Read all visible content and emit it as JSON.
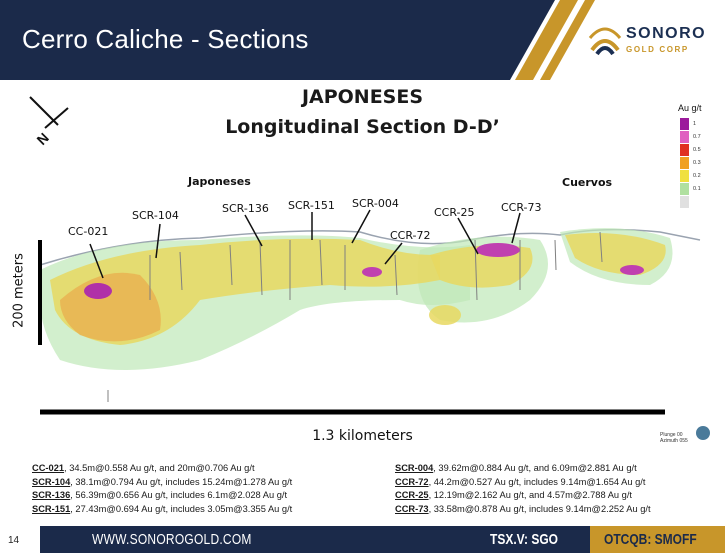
{
  "slide": {
    "title": "Cerro Caliche - Sections",
    "page_number": "14"
  },
  "logo": {
    "line1": "SONORO",
    "line2": "GOLD CORP"
  },
  "section": {
    "title_line1": "JAPONESES",
    "title_line2": "Longitudinal Section D-D’"
  },
  "map": {
    "north_label": "N",
    "zones": [
      "Japoneses",
      "Cuervos"
    ],
    "drill_holes": [
      "CC-021",
      "SCR-104",
      "SCR-136",
      "SCR-151",
      "SCR-004",
      "CCR-72",
      "CCR-25",
      "CCR-73"
    ],
    "vertical_scale": "200 meters",
    "horizontal_scale": "1.3 kilometers",
    "plunge_line1": "Plunge 00",
    "plunge_line2": "Azimuth 055"
  },
  "legend": {
    "title": "Au g/t",
    "items": [
      {
        "value": "1",
        "color": "#9c1a9c"
      },
      {
        "value": "0.7",
        "color": "#e060c0"
      },
      {
        "value": "0.5",
        "color": "#e03020"
      },
      {
        "value": "0.3",
        "color": "#f0a020"
      },
      {
        "value": "0.2",
        "color": "#f0e040"
      },
      {
        "value": "0.1",
        "color": "#b0e0a0"
      },
      {
        "value": "",
        "color": "#e0e0e0"
      }
    ]
  },
  "results": {
    "left": [
      {
        "hole": "CC-021",
        "text": ", 34.5m@0.558  Au g/t, and 20m@0.706  Au g/t"
      },
      {
        "hole": "SCR-104",
        "text": ", 38.1m@0.794  Au g/t, includes 15.24m@1.278  Au g/t"
      },
      {
        "hole": "SCR-136",
        "text": ", 56.39m@0.656  Au g/t, includes 6.1m@2.028  Au g/t"
      },
      {
        "hole": "SCR-151",
        "text": ", 27.43m@0.694  Au g/t, includes 3.05m@3.355  Au g/t"
      }
    ],
    "right": [
      {
        "hole": "SCR-004",
        "text": ", 39.62m@0.884  Au g/t, and 6.09m@2.881  Au g/t"
      },
      {
        "hole": "CCR-72",
        "text": ", 44.2m@0.527  Au g/t, includes 9.14m@1.654  Au g/t"
      },
      {
        "hole": "CCR-25",
        "text": ", 12.19m@2.162  Au g/t, and 4.57m@2.788  Au g/t"
      },
      {
        "hole": "CCR-73",
        "text": ", 33.58m@0.878  Au g/t, includes 9.14m@2.252  Au g/t"
      }
    ]
  },
  "footer": {
    "url": "WWW.SONOROGOLD.COM",
    "tsx": "TSX.V: SGO",
    "otc": "OTCQB: SMOFF"
  }
}
